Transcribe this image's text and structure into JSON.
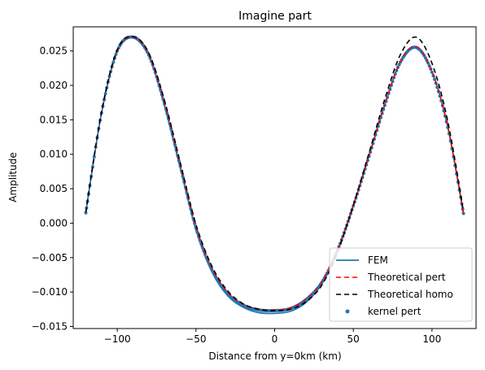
{
  "chart_data": {
    "type": "line",
    "title": "Imagine part",
    "xlabel": "Distance from y=0km (km)",
    "ylabel": "Amplitude",
    "xlim": [
      -128,
      128
    ],
    "ylim": [
      -0.0153,
      0.0285
    ],
    "xticks": [
      -100,
      -50,
      0,
      50,
      100
    ],
    "xtick_labels": [
      "−100",
      "−50",
      "0",
      "50",
      "100"
    ],
    "yticks": [
      -0.015,
      -0.01,
      -0.005,
      0.0,
      0.005,
      0.01,
      0.015,
      0.02,
      0.025
    ],
    "ytick_labels": [
      "−0.015",
      "−0.010",
      "−0.005",
      "0.000",
      "0.005",
      "0.010",
      "0.015",
      "0.020",
      "0.025"
    ],
    "grid": false,
    "legend_position": "lower right",
    "x": [
      -120,
      -110,
      -100,
      -90,
      -80,
      -70,
      -60,
      -50,
      -40,
      -30,
      -20,
      -10,
      0,
      10,
      20,
      30,
      40,
      50,
      60,
      70,
      80,
      90,
      100,
      110,
      120
    ],
    "series": [
      {
        "name": "FEM",
        "style": "solid",
        "color": "#1f77b4",
        "values": [
          0.0016,
          0.016,
          0.025,
          0.027,
          0.0243,
          0.017,
          0.008,
          -0.001,
          -0.007,
          -0.0105,
          -0.0122,
          -0.013,
          -0.0131,
          -0.0128,
          -0.0115,
          -0.0088,
          -0.004,
          0.0025,
          0.0098,
          0.0172,
          0.0235,
          0.0255,
          0.022,
          0.014,
          0.0014
        ]
      },
      {
        "name": "Theoretical pert",
        "style": "dashed",
        "color": "#ff0000",
        "values": [
          0.0016,
          0.016,
          0.025,
          0.027,
          0.0245,
          0.0175,
          0.0085,
          -0.0005,
          -0.0065,
          -0.01,
          -0.0118,
          -0.0125,
          -0.0126,
          -0.0123,
          -0.011,
          -0.0085,
          -0.0038,
          0.0026,
          0.0098,
          0.0172,
          0.0235,
          0.0256,
          0.022,
          0.014,
          0.0015
        ]
      },
      {
        "name": "Theoretical homo",
        "style": "dashed",
        "color": "#000000",
        "values": [
          0.0016,
          0.0162,
          0.0252,
          0.0271,
          0.0247,
          0.0178,
          0.0088,
          -0.0002,
          -0.0062,
          -0.0098,
          -0.0117,
          -0.0125,
          -0.0127,
          -0.0125,
          -0.0114,
          -0.009,
          -0.0042,
          0.0026,
          0.0102,
          0.018,
          0.0245,
          0.027,
          0.0232,
          0.0148,
          0.0017
        ]
      },
      {
        "name": "kernel pert",
        "style": "scatter",
        "color": "#1f77b4",
        "values": [
          0.0015,
          0.016,
          0.025,
          0.027,
          0.0244,
          0.0173,
          0.0083,
          -0.0007,
          -0.0067,
          -0.0102,
          -0.0119,
          -0.0126,
          -0.0127,
          -0.0124,
          -0.0111,
          -0.0086,
          -0.0039,
          0.0025,
          0.0097,
          0.0171,
          0.0234,
          0.0255,
          0.0219,
          0.0139,
          0.0014
        ]
      }
    ]
  }
}
